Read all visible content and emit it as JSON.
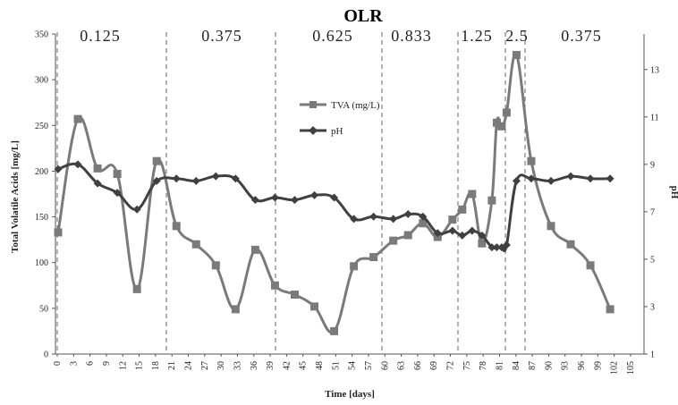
{
  "chart_data": {
    "type": "line",
    "title": "OLR",
    "xlabel": "Time [days]",
    "ylabel": "Total Volatile Acids [mg/L]",
    "y2label": "pH",
    "x_ticks": [
      "0",
      "3",
      "6",
      "9",
      "12",
      "15",
      "18",
      "21",
      "24",
      "27",
      "30",
      "33",
      "36",
      "39",
      "42",
      "45",
      "48",
      "51",
      "54",
      "57",
      "60",
      "63",
      "66",
      "69",
      "72",
      "75",
      "78",
      "81",
      "84",
      "87",
      "90",
      "93",
      "96",
      "99",
      "102",
      "105"
    ],
    "xlim": [
      0,
      106
    ],
    "ylim": [
      0,
      350
    ],
    "y_ticks": [
      "0",
      "50",
      "100",
      "150",
      "200",
      "250",
      "300",
      "350"
    ],
    "y2lim": [
      1,
      14.5
    ],
    "y2_ticks": [
      "1",
      "3",
      "5",
      "7",
      "9",
      "11",
      "13"
    ],
    "phases": [
      {
        "start": 0,
        "end": 20,
        "label": "0.125"
      },
      {
        "start": 20,
        "end": 40,
        "label": "0.375"
      },
      {
        "start": 40,
        "end": 59,
        "label": "0.625"
      },
      {
        "start": 59,
        "end": 73,
        "label": "0.833"
      },
      {
        "start": 73,
        "end": 81.5,
        "label": "1.25"
      },
      {
        "start": 81.5,
        "end": 85.5,
        "label": "2.5"
      },
      {
        "start": 85.5,
        "end": 106,
        "label": "0.375"
      }
    ],
    "boundaries": [
      0,
      20,
      40,
      59,
      73,
      81.5,
      85.5
    ],
    "series": [
      {
        "name": "TVA (mg/L)",
        "axis": "left",
        "color": "#7a7a7a",
        "marker": "square",
        "points": [
          [
            0,
            133
          ],
          [
            4,
            257
          ],
          [
            8,
            203
          ],
          [
            12,
            197
          ],
          [
            16,
            71
          ],
          [
            20,
            211
          ],
          [
            24,
            140
          ],
          [
            28,
            120
          ],
          [
            32,
            97
          ],
          [
            36,
            49
          ],
          [
            40,
            114
          ],
          [
            44,
            75
          ],
          [
            48,
            65
          ],
          [
            52,
            52
          ],
          [
            56,
            25
          ],
          [
            60,
            96
          ],
          [
            64,
            106
          ],
          [
            68,
            124
          ],
          [
            71,
            130
          ],
          [
            74,
            143
          ],
          [
            77,
            128
          ],
          [
            80,
            147
          ],
          [
            82,
            158
          ],
          [
            84,
            175
          ],
          [
            86,
            121
          ],
          [
            88,
            168
          ],
          [
            89,
            253
          ],
          [
            90,
            249
          ],
          [
            91,
            264
          ],
          [
            93,
            327
          ],
          [
            96,
            211
          ],
          [
            100,
            140
          ],
          [
            104,
            120
          ],
          [
            108,
            97
          ],
          [
            112,
            49
          ]
        ]
      },
      {
        "name": "pH",
        "axis": "right",
        "color": "#404040",
        "marker": "diamond",
        "points": [
          [
            0,
            8.8
          ],
          [
            4,
            9.0
          ],
          [
            8,
            8.2
          ],
          [
            12,
            7.8
          ],
          [
            16,
            7.1
          ],
          [
            20,
            8.3
          ],
          [
            24,
            8.4
          ],
          [
            28,
            8.3
          ],
          [
            32,
            8.5
          ],
          [
            36,
            8.4
          ],
          [
            40,
            7.5
          ],
          [
            44,
            7.6
          ],
          [
            48,
            7.5
          ],
          [
            52,
            7.7
          ],
          [
            56,
            7.6
          ],
          [
            60,
            6.7
          ],
          [
            64,
            6.8
          ],
          [
            68,
            6.7
          ],
          [
            71,
            6.9
          ],
          [
            74,
            6.8
          ],
          [
            77,
            6.1
          ],
          [
            80,
            6.2
          ],
          [
            82,
            6.0
          ],
          [
            84,
            6.2
          ],
          [
            86,
            6.0
          ],
          [
            88,
            5.5
          ],
          [
            89,
            5.5
          ],
          [
            90,
            5.5
          ],
          [
            91,
            5.6
          ],
          [
            93,
            8.3
          ],
          [
            96,
            8.4
          ],
          [
            100,
            8.3
          ],
          [
            104,
            8.5
          ],
          [
            108,
            8.4
          ],
          [
            112,
            8.4
          ]
        ]
      }
    ],
    "legend": {
      "entries": [
        "TVA (mg/L)",
        "pH"
      ],
      "placement": "center"
    }
  }
}
